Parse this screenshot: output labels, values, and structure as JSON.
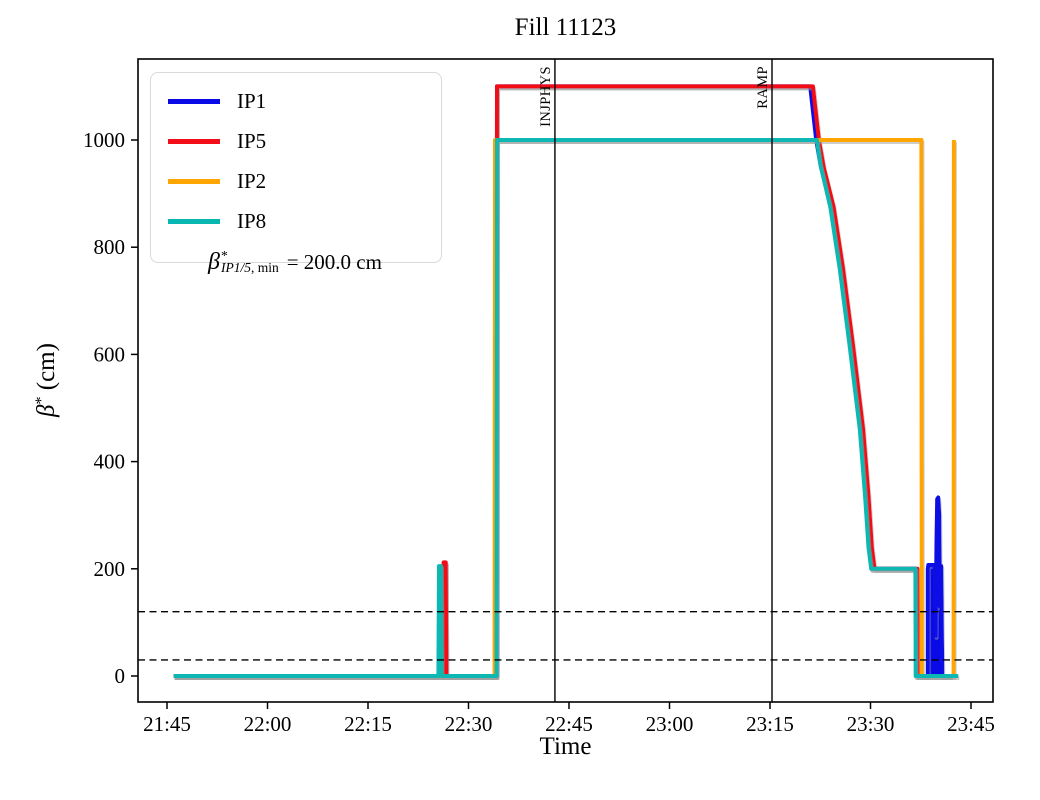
{
  "title": "Fill 11123",
  "axes": {
    "xlabel": "Time",
    "ylabel_beta": "β",
    "ylabel_sup": "*",
    "ylabel_rest": " (cm)",
    "x_ticks": [
      {
        "label": "21:45",
        "t": 0
      },
      {
        "label": "22:00",
        "t": 15
      },
      {
        "label": "22:15",
        "t": 30
      },
      {
        "label": "22:30",
        "t": 45
      },
      {
        "label": "22:45",
        "t": 60
      },
      {
        "label": "23:00",
        "t": 75
      },
      {
        "label": "23:15",
        "t": 90
      },
      {
        "label": "23:30",
        "t": 105
      },
      {
        "label": "23:45",
        "t": 120
      }
    ],
    "y_ticks": [
      {
        "label": "0",
        "v": 0
      },
      {
        "label": "200",
        "v": 200
      },
      {
        "label": "400",
        "v": 400
      },
      {
        "label": "600",
        "v": 600
      },
      {
        "label": "800",
        "v": 800
      },
      {
        "label": "1000",
        "v": 1000
      }
    ]
  },
  "legend": {
    "items": [
      {
        "label": "IP1",
        "color": "#0a0ae6"
      },
      {
        "label": "IP5",
        "color": "#f20d18"
      },
      {
        "label": "IP2",
        "color": "#ffa502"
      },
      {
        "label": "IP8",
        "color": "#09b7b2"
      }
    ],
    "annotation": {
      "beta": "β",
      "sup": "*",
      "sub_italic": "IP1/5",
      "sub_rest": ", min",
      "value": "= 200.0 cm"
    }
  },
  "chart_data": {
    "type": "line",
    "title": "Fill 11123",
    "xlabel": "Time",
    "ylabel": "beta* (cm)",
    "x_unit": "minutes since 21:45",
    "y_unit": "cm",
    "xlim_minutes": [
      -4.3,
      123.3
    ],
    "ylim": [
      -48,
      1152
    ],
    "grid": false,
    "legend_position": "upper left",
    "ref_lines_cm": [
      120,
      30
    ],
    "event_lines": [
      {
        "label": "INJPHYS",
        "t": 57.9,
        "time": "22:43"
      },
      {
        "label": "RAMP",
        "t": 90.3,
        "time": "23:15"
      }
    ],
    "series": [
      {
        "name": "IP1",
        "color": "#0a0ae6",
        "points": [
          [
            1,
            0
          ],
          [
            41.2,
            0
          ],
          [
            41.3,
            210
          ],
          [
            41.6,
            210
          ],
          [
            41.7,
            0
          ],
          [
            49.2,
            0
          ],
          [
            49.25,
            1100
          ],
          [
            96.0,
            1100
          ],
          [
            96.9,
            1000
          ],
          [
            97.6,
            950
          ],
          [
            99.1,
            875
          ],
          [
            100.5,
            760
          ],
          [
            102.0,
            615
          ],
          [
            103.5,
            460
          ],
          [
            104.3,
            335
          ],
          [
            104.8,
            240
          ],
          [
            105.2,
            200
          ],
          [
            111.8,
            200
          ],
          [
            111.85,
            0
          ],
          [
            113.55,
            0
          ],
          [
            113.55,
            200
          ],
          [
            113.62,
            207
          ],
          [
            114.55,
            207
          ],
          [
            114.72,
            75
          ],
          [
            114.85,
            250
          ],
          [
            114.95,
            330
          ],
          [
            115.1,
            333
          ],
          [
            115.25,
            300
          ],
          [
            115.35,
            130
          ],
          [
            115.45,
            200
          ],
          [
            115.55,
            205
          ],
          [
            115.62,
            100
          ],
          [
            115.72,
            0
          ],
          [
            117.0,
            0
          ]
        ],
        "fill": [
          [
            113.55,
            0
          ],
          [
            113.55,
            200
          ],
          [
            113.62,
            207
          ],
          [
            114.55,
            207
          ],
          [
            114.72,
            75
          ],
          [
            114.85,
            250
          ],
          [
            114.95,
            330
          ],
          [
            115.1,
            333
          ],
          [
            115.25,
            300
          ],
          [
            115.35,
            130
          ],
          [
            115.45,
            200
          ],
          [
            115.55,
            205
          ],
          [
            115.62,
            100
          ],
          [
            115.72,
            0
          ]
        ]
      },
      {
        "name": "IP5",
        "color": "#f20d18",
        "points": [
          [
            1,
            0
          ],
          [
            41.2,
            0
          ],
          [
            41.3,
            212
          ],
          [
            41.6,
            212
          ],
          [
            41.7,
            0
          ],
          [
            49.2,
            0
          ],
          [
            49.25,
            1100
          ],
          [
            96.4,
            1100
          ],
          [
            97.3,
            1000
          ],
          [
            98.0,
            950
          ],
          [
            99.5,
            875
          ],
          [
            100.9,
            760
          ],
          [
            102.4,
            615
          ],
          [
            103.9,
            460
          ],
          [
            104.7,
            335
          ],
          [
            105.2,
            240
          ],
          [
            105.6,
            200
          ],
          [
            112.0,
            200
          ],
          [
            112.05,
            0
          ],
          [
            117.2,
            0
          ]
        ]
      },
      {
        "name": "IP2",
        "color": "#ffa502",
        "points": [
          [
            1,
            0
          ],
          [
            48.9,
            0
          ],
          [
            48.95,
            1000
          ],
          [
            112.6,
            1000
          ],
          [
            112.65,
            0
          ],
          [
            117.4,
            0
          ],
          [
            117.45,
            1000
          ]
        ]
      },
      {
        "name": "IP8",
        "color": "#09b7b2",
        "points": [
          [
            1,
            0
          ],
          [
            40.5,
            0
          ],
          [
            40.6,
            205
          ],
          [
            40.9,
            205
          ],
          [
            41.0,
            0
          ],
          [
            49.2,
            0
          ],
          [
            49.25,
            1000
          ],
          [
            97.0,
            1000
          ],
          [
            97.5,
            955
          ],
          [
            99.0,
            875
          ],
          [
            100.4,
            760
          ],
          [
            101.9,
            615
          ],
          [
            103.4,
            460
          ],
          [
            104.2,
            335
          ],
          [
            104.7,
            240
          ],
          [
            105.1,
            200
          ],
          [
            111.7,
            200
          ],
          [
            111.75,
            0
          ],
          [
            118.1,
            0
          ]
        ]
      }
    ]
  }
}
